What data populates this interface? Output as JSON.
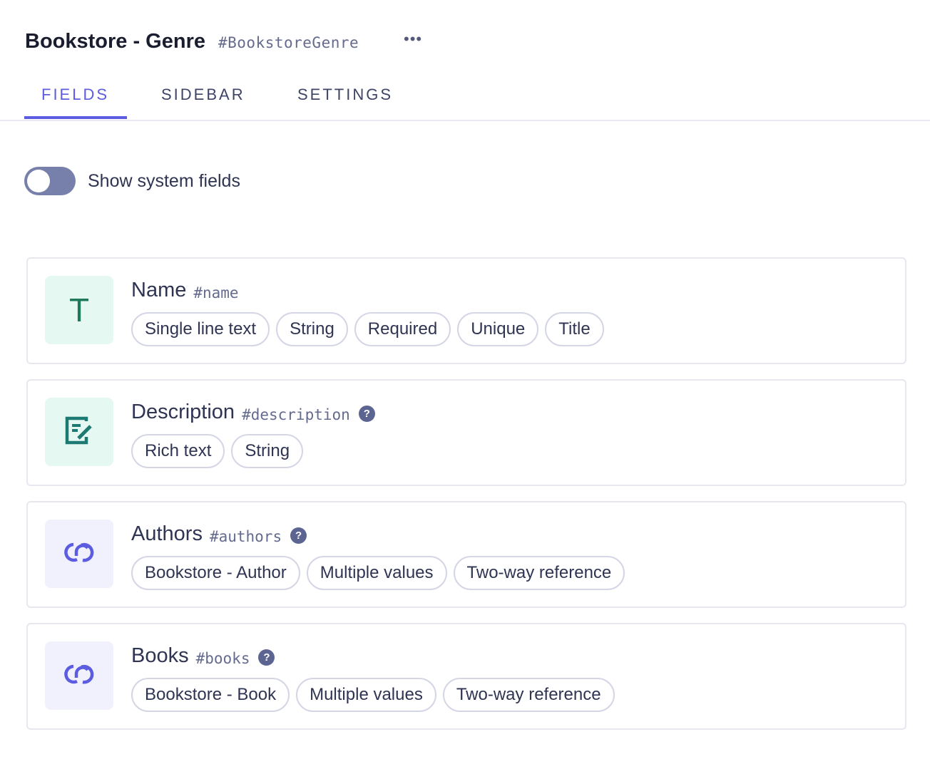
{
  "header": {
    "title": "Bookstore - Genre",
    "api_key": "#BookstoreGenre",
    "more": "•••"
  },
  "tabs": [
    {
      "label": "FIELDS",
      "active": true
    },
    {
      "label": "SIDEBAR"
    },
    {
      "label": "SETTINGS"
    }
  ],
  "toggle": {
    "label": "Show system fields",
    "on": false
  },
  "fields": [
    {
      "name": "Name",
      "key": "#name",
      "icon": "text-t-icon",
      "help": false,
      "tags": [
        "Single line text",
        "String",
        "Required",
        "Unique",
        "Title"
      ]
    },
    {
      "name": "Description",
      "key": "#description",
      "icon": "edit-document-icon",
      "help": true,
      "tags": [
        "Rich text",
        "String"
      ]
    },
    {
      "name": "Authors",
      "key": "#authors",
      "icon": "link-icon",
      "help": true,
      "tags": [
        "Bookstore - Author",
        "Multiple values",
        "Two-way reference"
      ]
    },
    {
      "name": "Books",
      "key": "#books",
      "icon": "link-icon",
      "help": true,
      "tags": [
        "Bookstore - Book",
        "Multiple values",
        "Two-way reference"
      ]
    }
  ],
  "icons": {
    "t": "T",
    "help": "?"
  },
  "colors": {
    "accent": "#5c5ce0",
    "text_icon": "#1f7a5c"
  }
}
